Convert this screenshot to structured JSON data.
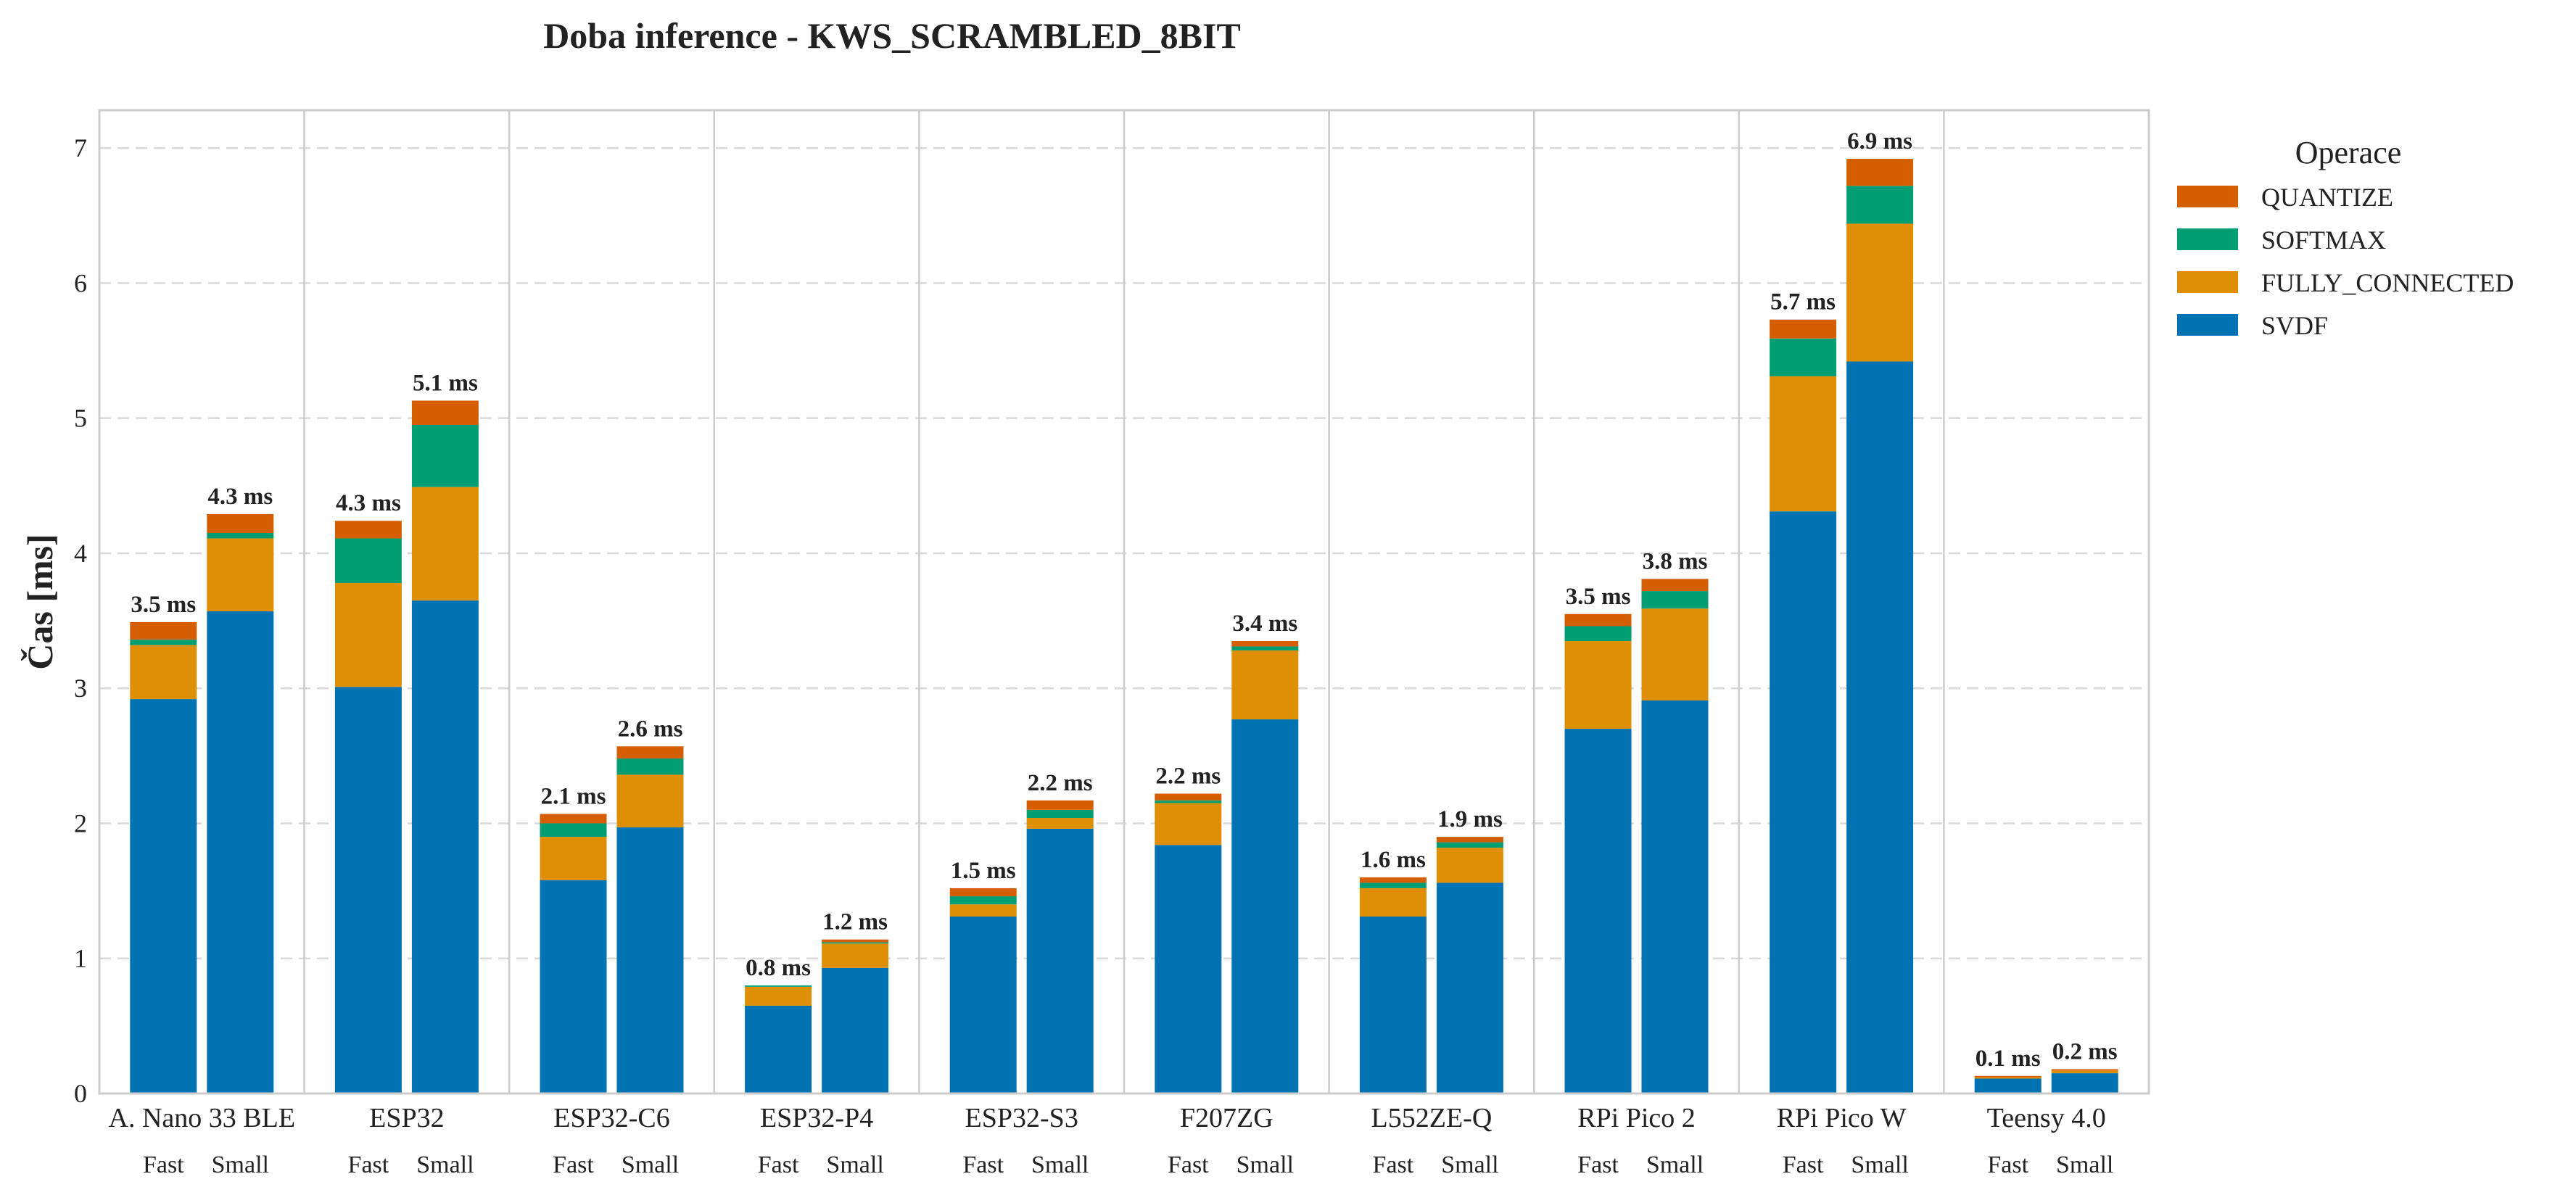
{
  "chart_data": {
    "type": "bar",
    "stacked": true,
    "title": "Doba inference - KWS_SCRAMBLED_8BIT",
    "ylabel": "Čas [ms]",
    "xlabel": "",
    "ylim": [
      0,
      7.28
    ],
    "yticks": [
      "0",
      "1",
      "2",
      "3",
      "4",
      "5",
      "6",
      "7"
    ],
    "grid": "y, dashed",
    "legend": {
      "title": "Operace",
      "position": "outside-right"
    },
    "devices": [
      "A. Nano 33 BLE",
      "ESP32",
      "ESP32-C6",
      "ESP32-P4",
      "ESP32-S3",
      "F207ZG",
      "L552ZE-Q",
      "RPi Pico 2",
      "RPi Pico W",
      "Teensy 4.0"
    ],
    "variants": [
      "Fast",
      "Small"
    ],
    "series": [
      {
        "name": "SVDF",
        "color": "#0173b2",
        "values": [
          2.92,
          3.57,
          3.01,
          3.65,
          1.58,
          1.97,
          0.65,
          0.93,
          1.31,
          1.96,
          1.84,
          2.77,
          1.31,
          1.56,
          2.7,
          2.91,
          4.31,
          5.42,
          0.11,
          0.15
        ]
      },
      {
        "name": "FULLY_CONNECTED",
        "color": "#de8f05",
        "values": [
          0.4,
          0.54,
          0.77,
          0.84,
          0.32,
          0.39,
          0.14,
          0.18,
          0.09,
          0.08,
          0.31,
          0.51,
          0.21,
          0.26,
          0.65,
          0.68,
          1.0,
          1.02,
          0.01,
          0.02
        ]
      },
      {
        "name": "SOFTMAX",
        "color": "#029e73",
        "values": [
          0.04,
          0.04,
          0.33,
          0.46,
          0.1,
          0.12,
          0.01,
          0.01,
          0.06,
          0.06,
          0.02,
          0.03,
          0.04,
          0.04,
          0.11,
          0.13,
          0.28,
          0.28,
          0.0,
          0.0
        ]
      },
      {
        "name": "QUANTIZE",
        "color": "#d55e00",
        "values": [
          0.13,
          0.14,
          0.13,
          0.18,
          0.07,
          0.09,
          0.0,
          0.02,
          0.06,
          0.07,
          0.05,
          0.04,
          0.04,
          0.04,
          0.09,
          0.09,
          0.14,
          0.2,
          0.01,
          0.01
        ]
      }
    ],
    "labels": [
      "3.5 ms",
      "4.3 ms",
      "4.3 ms",
      "5.1 ms",
      "2.1 ms",
      "2.6 ms",
      "0.8 ms",
      "1.2 ms",
      "1.5 ms",
      "2.2 ms",
      "2.2 ms",
      "3.4 ms",
      "1.6 ms",
      "1.9 ms",
      "3.5 ms",
      "3.8 ms",
      "5.7 ms",
      "6.9 ms",
      "0.1 ms",
      "0.2 ms"
    ],
    "legend_order": [
      "QUANTIZE",
      "SOFTMAX",
      "FULLY_CONNECTED",
      "SVDF"
    ]
  }
}
